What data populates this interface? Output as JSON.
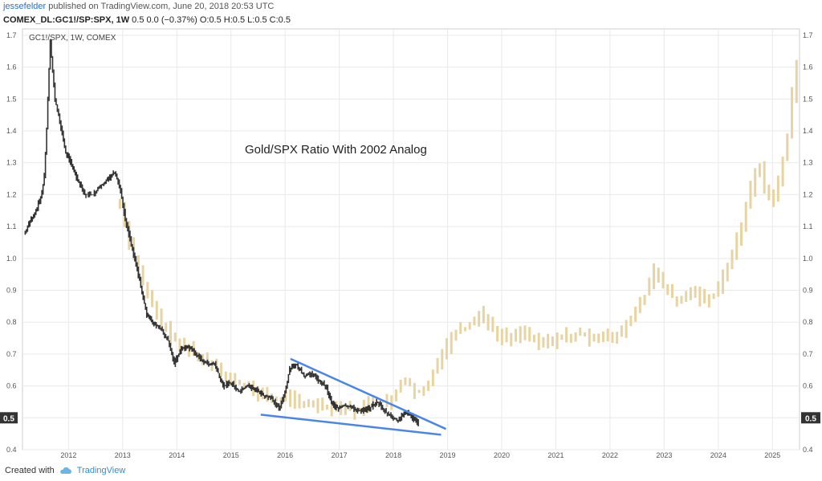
{
  "header": {
    "publisher": "jessefelder",
    "published_text": "published on TradingView.com, June 20, 2018 20:53 UTC",
    "symbol": "COMEX_DL:GC1!/SP:SPX, 1W",
    "ohlc_text": "0.5 0.0 (−0.37%) O:0.5 H:0.5 L:0.5 C:0.5"
  },
  "footer": {
    "created_with": "Created with",
    "brand": "TradingView",
    "logo_icon": "tradingview-cloud-icon"
  },
  "chart_data": {
    "type": "candlestick",
    "pane_label": "GC1!/SPX, 1W, COMEX",
    "annotation": "Gold/SPX Ratio With 2002 Analog",
    "price_label": "0.5",
    "ylim": [
      0.4,
      1.72
    ],
    "xlim": [
      2011.15,
      2025.5
    ],
    "y_ticks": [
      "0.4",
      "0.5",
      "0.6",
      "0.7",
      "0.8",
      "0.9",
      "1.0",
      "1.1",
      "1.2",
      "1.3",
      "1.4",
      "1.5",
      "1.6",
      "1.7"
    ],
    "x_ticks": [
      "2012",
      "2013",
      "2014",
      "2015",
      "2016",
      "2017",
      "2018",
      "2019",
      "2020",
      "2021",
      "2022",
      "2023",
      "2024",
      "2025"
    ],
    "colors": {
      "actual": "#333333",
      "analog": "#e8d4a2",
      "trendline": "#4a86e8",
      "grid": "#e9e9e9",
      "price_label_bg": "#333333"
    },
    "series": [
      {
        "name": "GC1!/SPX",
        "points": [
          [
            2011.2,
            1.08
          ],
          [
            2011.3,
            1.12
          ],
          [
            2011.4,
            1.15
          ],
          [
            2011.5,
            1.2
          ],
          [
            2011.55,
            1.25
          ],
          [
            2011.6,
            1.42
          ],
          [
            2011.66,
            1.68
          ],
          [
            2011.75,
            1.5
          ],
          [
            2011.85,
            1.42
          ],
          [
            2011.95,
            1.33
          ],
          [
            2012.05,
            1.3
          ],
          [
            2012.15,
            1.25
          ],
          [
            2012.3,
            1.2
          ],
          [
            2012.45,
            1.2
          ],
          [
            2012.6,
            1.23
          ],
          [
            2012.75,
            1.25
          ],
          [
            2012.85,
            1.27
          ],
          [
            2012.95,
            1.22
          ],
          [
            2013.05,
            1.12
          ],
          [
            2013.15,
            1.05
          ],
          [
            2013.25,
            0.98
          ],
          [
            2013.35,
            0.9
          ],
          [
            2013.45,
            0.82
          ],
          [
            2013.55,
            0.8
          ],
          [
            2013.7,
            0.78
          ],
          [
            2013.85,
            0.74
          ],
          [
            2013.95,
            0.67
          ],
          [
            2014.1,
            0.72
          ],
          [
            2014.25,
            0.72
          ],
          [
            2014.4,
            0.69
          ],
          [
            2014.55,
            0.67
          ],
          [
            2014.7,
            0.67
          ],
          [
            2014.85,
            0.6
          ],
          [
            2015.0,
            0.61
          ],
          [
            2015.15,
            0.58
          ],
          [
            2015.3,
            0.6
          ],
          [
            2015.45,
            0.59
          ],
          [
            2015.6,
            0.57
          ],
          [
            2015.75,
            0.56
          ],
          [
            2015.9,
            0.53
          ],
          [
            2016.0,
            0.58
          ],
          [
            2016.08,
            0.65
          ],
          [
            2016.2,
            0.67
          ],
          [
            2016.35,
            0.63
          ],
          [
            2016.5,
            0.64
          ],
          [
            2016.6,
            0.62
          ],
          [
            2016.75,
            0.6
          ],
          [
            2016.85,
            0.55
          ],
          [
            2016.95,
            0.53
          ],
          [
            2017.1,
            0.54
          ],
          [
            2017.25,
            0.53
          ],
          [
            2017.4,
            0.52
          ],
          [
            2017.55,
            0.53
          ],
          [
            2017.7,
            0.55
          ],
          [
            2017.8,
            0.53
          ],
          [
            2017.9,
            0.51
          ],
          [
            2018.0,
            0.5
          ],
          [
            2018.1,
            0.49
          ],
          [
            2018.2,
            0.52
          ],
          [
            2018.3,
            0.51
          ],
          [
            2018.4,
            0.49
          ],
          [
            2018.47,
            0.48
          ]
        ]
      },
      {
        "name": "2002 analog",
        "points": [
          [
            2012.95,
            1.17
          ],
          [
            2013.1,
            1.05
          ],
          [
            2013.3,
            0.95
          ],
          [
            2013.5,
            0.88
          ],
          [
            2013.7,
            0.8
          ],
          [
            2013.9,
            0.75
          ],
          [
            2014.1,
            0.73
          ],
          [
            2014.3,
            0.7
          ],
          [
            2014.5,
            0.68
          ],
          [
            2014.7,
            0.65
          ],
          [
            2014.9,
            0.63
          ],
          [
            2015.1,
            0.61
          ],
          [
            2015.3,
            0.6
          ],
          [
            2015.5,
            0.58
          ],
          [
            2015.7,
            0.56
          ],
          [
            2015.9,
            0.56
          ],
          [
            2016.1,
            0.56
          ],
          [
            2016.3,
            0.55
          ],
          [
            2016.5,
            0.54
          ],
          [
            2016.7,
            0.53
          ],
          [
            2016.9,
            0.52
          ],
          [
            2017.1,
            0.53
          ],
          [
            2017.3,
            0.52
          ],
          [
            2017.5,
            0.54
          ],
          [
            2017.7,
            0.55
          ],
          [
            2017.9,
            0.55
          ],
          [
            2018.1,
            0.6
          ],
          [
            2018.25,
            0.62
          ],
          [
            2018.4,
            0.58
          ],
          [
            2018.6,
            0.6
          ],
          [
            2018.8,
            0.66
          ],
          [
            2018.95,
            0.71
          ],
          [
            2019.1,
            0.76
          ],
          [
            2019.3,
            0.78
          ],
          [
            2019.5,
            0.8
          ],
          [
            2019.6,
            0.83
          ],
          [
            2019.75,
            0.79
          ],
          [
            2019.9,
            0.76
          ],
          [
            2020.1,
            0.75
          ],
          [
            2020.3,
            0.76
          ],
          [
            2020.5,
            0.76
          ],
          [
            2020.7,
            0.74
          ],
          [
            2020.9,
            0.74
          ],
          [
            2021.1,
            0.75
          ],
          [
            2021.3,
            0.76
          ],
          [
            2021.5,
            0.77
          ],
          [
            2021.7,
            0.74
          ],
          [
            2021.9,
            0.75
          ],
          [
            2022.1,
            0.76
          ],
          [
            2022.3,
            0.79
          ],
          [
            2022.5,
            0.85
          ],
          [
            2022.7,
            0.9
          ],
          [
            2022.8,
            0.97
          ],
          [
            2022.9,
            0.95
          ],
          [
            2023.0,
            0.91
          ],
          [
            2023.15,
            0.88
          ],
          [
            2023.3,
            0.87
          ],
          [
            2023.45,
            0.9
          ],
          [
            2023.6,
            0.88
          ],
          [
            2023.75,
            0.87
          ],
          [
            2023.9,
            0.88
          ],
          [
            2024.05,
            0.92
          ],
          [
            2024.2,
            0.99
          ],
          [
            2024.3,
            1.05
          ],
          [
            2024.45,
            1.1
          ],
          [
            2024.55,
            1.2
          ],
          [
            2024.65,
            1.25
          ],
          [
            2024.75,
            1.3
          ],
          [
            2024.85,
            1.22
          ],
          [
            2024.95,
            1.18
          ],
          [
            2025.05,
            1.2
          ],
          [
            2025.15,
            1.28
          ],
          [
            2025.25,
            1.35
          ],
          [
            2025.35,
            1.5
          ],
          [
            2025.45,
            1.6
          ]
        ]
      }
    ],
    "trendlines": [
      {
        "x1": 2016.1,
        "y1": 0.685,
        "x2": 2018.97,
        "y2": 0.465
      },
      {
        "x1": 2015.55,
        "y1": 0.51,
        "x2": 2018.88,
        "y2": 0.447
      }
    ]
  }
}
